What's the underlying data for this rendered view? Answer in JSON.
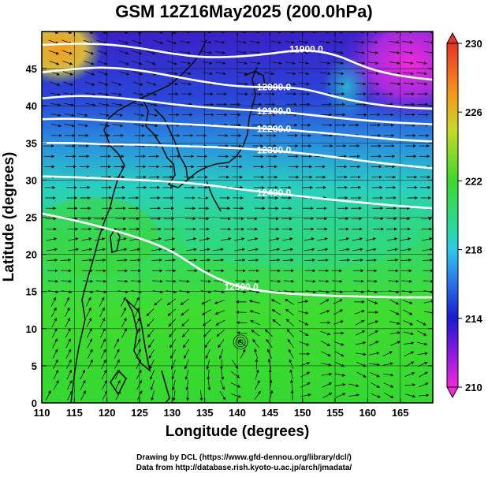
{
  "title": "GSM 12Z16May2025 (200.0hPa)",
  "xlabel": "Longitude (degrees)",
  "ylabel": "Latitude  (degrees)",
  "credits": {
    "line1": "Drawing by DCL (https://www.gfd-dennou.org/library/dcl/)",
    "line2": "Data from http://database.rish.kyoto-u.ac.jp/arch/jmadata/"
  },
  "map": {
    "lon_range": [
      110,
      170
    ],
    "lat_range": [
      0,
      50
    ],
    "lon_ticks": [
      "110",
      "115",
      "120",
      "125",
      "130",
      "135",
      "140",
      "145",
      "150",
      "155",
      "160",
      "165"
    ],
    "lat_ticks": [
      "0",
      "5",
      "10",
      "15",
      "20",
      "25",
      "30",
      "35",
      "40",
      "45"
    ],
    "contours": [
      {
        "label": "11900.0",
        "values": [
          48.2,
          48.4,
          48.3,
          47.8,
          47.0,
          46.5,
          46.6,
          47.0,
          47.6,
          47.0,
          45.0,
          44.0,
          43.5
        ]
      },
      {
        "label": "12000.0",
        "values": [
          44.5,
          45.0,
          45.2,
          44.8,
          44.0,
          43.2,
          42.6,
          42.5,
          42.4,
          41.2,
          40.3,
          39.8,
          39.6
        ]
      },
      {
        "label": "12100.0",
        "values": [
          41.0,
          41.4,
          41.2,
          40.8,
          40.2,
          39.8,
          39.5,
          39.3,
          38.9,
          38.4,
          38.0,
          37.7,
          37.5
        ]
      },
      {
        "label": "12200.0",
        "values": [
          38.2,
          38.3,
          38.0,
          37.8,
          37.6,
          37.4,
          37.1,
          36.9,
          36.6,
          36.2,
          35.8,
          35.4,
          35.2
        ]
      },
      {
        "label": "12300.0",
        "values": [
          35.0,
          35.0,
          34.8,
          34.8,
          34.6,
          34.5,
          34.3,
          34.0,
          33.6,
          33.1,
          32.5,
          32.0,
          31.6
        ]
      },
      {
        "label": "12400.0",
        "values": [
          30.5,
          30.4,
          30.2,
          30.0,
          29.8,
          29.4,
          28.8,
          28.3,
          27.8,
          27.3,
          26.9,
          26.5,
          26.2
        ]
      },
      {
        "label": "12500.0",
        "values": [
          25.5,
          24.6,
          23.5,
          22.2,
          20.5,
          17.5,
          15.6,
          14.9,
          14.6,
          14.4,
          14.3,
          14.2,
          14.2
        ]
      }
    ],
    "typhoon_center": {
      "lon": 140.5,
      "lat": 8.2
    }
  },
  "colorbar": {
    "ticks": [
      "230",
      "226",
      "222",
      "218",
      "214",
      "210"
    ],
    "range": [
      210,
      230
    ],
    "stops": [
      {
        "v": 230,
        "color": "#e8322a"
      },
      {
        "v": 227,
        "color": "#f39a1e"
      },
      {
        "v": 225,
        "color": "#c8d82a"
      },
      {
        "v": 222,
        "color": "#3ed82e"
      },
      {
        "v": 219,
        "color": "#2ad8a8"
      },
      {
        "v": 218,
        "color": "#2ec8e8"
      },
      {
        "v": 216,
        "color": "#2a70e8"
      },
      {
        "v": 214,
        "color": "#1a1ad0"
      },
      {
        "v": 212,
        "color": "#8a1ae0"
      },
      {
        "v": 210,
        "color": "#f02ad8"
      }
    ]
  }
}
